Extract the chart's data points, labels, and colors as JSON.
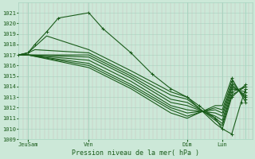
{
  "background_color": "#cce8d8",
  "grid_color_h": "#a8d4c0",
  "grid_color_v": "#c8b8b8",
  "line_color": "#1a5c1a",
  "ylim": [
    1009,
    1022
  ],
  "yticks": [
    1009,
    1010,
    1011,
    1012,
    1013,
    1014,
    1015,
    1016,
    1017,
    1018,
    1019,
    1020,
    1021
  ],
  "xlabel": "Pression niveau de la mer( hPa )",
  "xtick_labels": [
    "JeuSam",
    "Ven",
    "Dim",
    "Lun"
  ],
  "xtick_pos": [
    0.04,
    0.3,
    0.72,
    0.87
  ],
  "vline_pos": [
    0.04,
    0.3,
    0.72,
    0.87,
    0.97
  ],
  "lines": [
    {
      "x": [
        0.0,
        0.04,
        0.07,
        0.12,
        0.17,
        0.3,
        0.36,
        0.48,
        0.57,
        0.65,
        0.72,
        0.77,
        0.84,
        0.87,
        0.91,
        0.95,
        0.97
      ],
      "y": [
        1017.0,
        1017.2,
        1018.0,
        1019.2,
        1020.5,
        1021.0,
        1019.5,
        1017.2,
        1015.2,
        1013.8,
        1013.0,
        1012.2,
        1011.0,
        1010.0,
        1009.5,
        1012.5,
        1013.8
      ]
    },
    {
      "x": [
        0.0,
        0.04,
        0.07,
        0.12,
        0.3,
        0.48,
        0.65,
        0.72,
        0.84,
        0.87,
        0.91,
        0.97
      ],
      "y": [
        1017.0,
        1017.2,
        1017.8,
        1018.8,
        1017.5,
        1015.5,
        1013.5,
        1013.0,
        1010.5,
        1010.0,
        1013.0,
        1014.2
      ]
    },
    {
      "x": [
        0.0,
        0.04,
        0.07,
        0.3,
        0.48,
        0.65,
        0.72,
        0.84,
        0.87,
        0.91,
        0.97
      ],
      "y": [
        1017.0,
        1017.2,
        1017.5,
        1017.2,
        1015.2,
        1013.2,
        1012.8,
        1010.8,
        1010.3,
        1013.2,
        1014.0
      ]
    },
    {
      "x": [
        0.0,
        0.04,
        0.3,
        0.48,
        0.65,
        0.72,
        0.84,
        0.87,
        0.91,
        0.97
      ],
      "y": [
        1017.0,
        1017.0,
        1017.0,
        1015.0,
        1012.8,
        1012.5,
        1011.0,
        1010.5,
        1013.5,
        1014.0
      ]
    },
    {
      "x": [
        0.0,
        0.04,
        0.3,
        0.48,
        0.65,
        0.72,
        0.84,
        0.87,
        0.91,
        0.97
      ],
      "y": [
        1017.0,
        1017.0,
        1016.8,
        1014.8,
        1012.5,
        1012.2,
        1011.2,
        1010.8,
        1013.8,
        1013.5
      ]
    },
    {
      "x": [
        0.0,
        0.04,
        0.3,
        0.48,
        0.65,
        0.72,
        0.84,
        0.87,
        0.91,
        0.97
      ],
      "y": [
        1017.0,
        1017.0,
        1016.5,
        1014.5,
        1012.2,
        1011.8,
        1011.5,
        1011.2,
        1014.0,
        1013.2
      ]
    },
    {
      "x": [
        0.0,
        0.04,
        0.3,
        0.48,
        0.65,
        0.72,
        0.84,
        0.87,
        0.91,
        0.97
      ],
      "y": [
        1017.0,
        1017.0,
        1016.2,
        1014.2,
        1012.0,
        1011.5,
        1011.8,
        1011.5,
        1014.2,
        1013.0
      ]
    },
    {
      "x": [
        0.0,
        0.04,
        0.3,
        0.48,
        0.65,
        0.72,
        0.84,
        0.87,
        0.91,
        0.97
      ],
      "y": [
        1017.0,
        1017.0,
        1016.0,
        1014.0,
        1011.8,
        1011.2,
        1012.0,
        1011.8,
        1014.5,
        1012.8
      ]
    },
    {
      "x": [
        0.0,
        0.04,
        0.3,
        0.48,
        0.65,
        0.72,
        0.84,
        0.87,
        0.91,
        0.97
      ],
      "y": [
        1017.0,
        1017.0,
        1015.8,
        1013.8,
        1011.5,
        1011.0,
        1012.2,
        1012.2,
        1014.8,
        1012.5
      ]
    }
  ],
  "marker_points": [
    [
      0.0,
      1017.0
    ],
    [
      0.04,
      1017.2
    ],
    [
      0.07,
      1018.0
    ],
    [
      0.12,
      1019.2
    ],
    [
      0.17,
      1020.5
    ],
    [
      0.3,
      1021.0
    ],
    [
      0.36,
      1019.5
    ],
    [
      0.48,
      1017.2
    ],
    [
      0.57,
      1015.2
    ],
    [
      0.65,
      1013.8
    ],
    [
      0.72,
      1013.0
    ],
    [
      0.77,
      1012.2
    ],
    [
      0.84,
      1011.0
    ],
    [
      0.87,
      1010.0
    ],
    [
      0.91,
      1009.5
    ],
    [
      0.95,
      1012.5
    ],
    [
      0.97,
      1013.8
    ],
    [
      0.91,
      1013.0
    ],
    [
      0.91,
      1013.2
    ],
    [
      0.91,
      1013.5
    ],
    [
      0.91,
      1013.8
    ],
    [
      0.91,
      1014.0
    ],
    [
      0.91,
      1014.2
    ],
    [
      0.91,
      1014.5
    ],
    [
      0.91,
      1014.8
    ],
    [
      0.97,
      1014.0
    ],
    [
      0.97,
      1014.2
    ],
    [
      0.97,
      1013.8
    ],
    [
      0.97,
      1013.5
    ],
    [
      0.97,
      1013.2
    ],
    [
      0.97,
      1013.0
    ],
    [
      0.97,
      1012.8
    ],
    [
      0.97,
      1012.5
    ]
  ]
}
